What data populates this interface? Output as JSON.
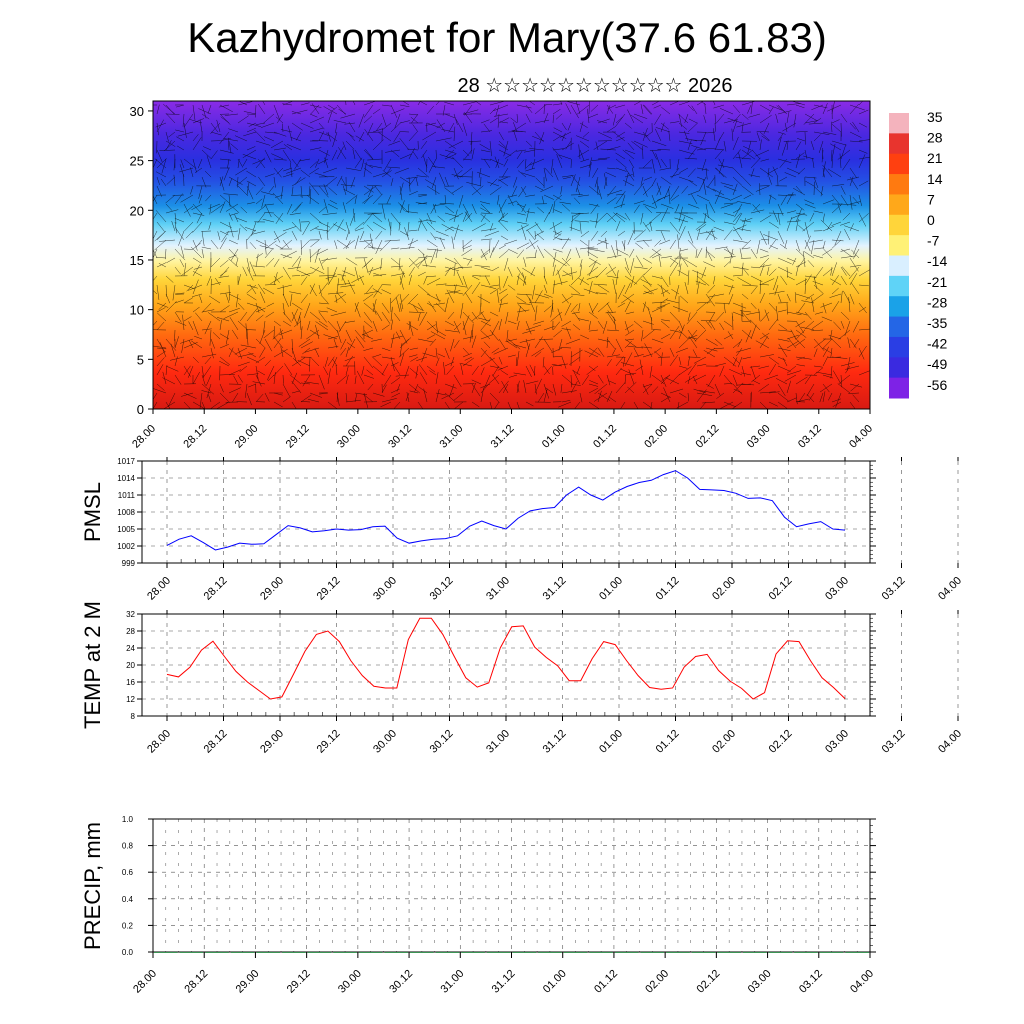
{
  "title": "Kazhydromet for Mary(37.6 61.83)",
  "subtitle": "28 ☆☆☆☆☆☆☆☆☆☆☆ 2026",
  "chart_data": [
    {
      "type": "heatmap",
      "name": "temperature-cross-section",
      "x_tick_labels": [
        "28.00",
        "28.12",
        "29.00",
        "29.12",
        "30.00",
        "30.12",
        "31.00",
        "31.12",
        "01.00",
        "01.12",
        "02.00",
        "02.12",
        "03.00",
        "03.12",
        "04.00"
      ],
      "y_ticks": [
        0,
        5,
        10,
        15,
        20,
        25,
        30
      ],
      "ylim": [
        0,
        31
      ],
      "colorbar": {
        "labels": [
          "35",
          "28",
          "21",
          "14",
          "7",
          "0",
          "-7",
          "-14",
          "-21",
          "-28",
          "-35",
          "-42",
          "-49",
          "-56"
        ],
        "colors": [
          "#f4b3bd",
          "#e8342e",
          "#ff4010",
          "#ff7a10",
          "#ffa81a",
          "#ffd53a",
          "#fff176",
          "#d9efff",
          "#5fd3f7",
          "#1aa2e8",
          "#2466e6",
          "#2a3ee4",
          "#3a2ae0",
          "#7e22e6"
        ]
      },
      "overlay": "wind vectors"
    },
    {
      "type": "line",
      "name": "pmsl",
      "ylabel": "PMSL",
      "ylim": [
        999,
        1017
      ],
      "y_ticks": [
        999,
        1002,
        1005,
        1008,
        1011,
        1014,
        1017
      ],
      "x_tick_labels": [
        "28.00",
        "28.12",
        "29.00",
        "29.12",
        "30.00",
        "30.12",
        "31.00",
        "31.12",
        "01.00",
        "01.12",
        "02.00",
        "02.12",
        "03.00",
        "03.12",
        "04.00"
      ],
      "x_range_steps": 48,
      "color": "#0000ff",
      "values": [
        1002.1,
        1003.2,
        1003.8,
        1002.6,
        1001.3,
        1001.8,
        1002.5,
        1002.3,
        1002.4,
        1004.0,
        1005.6,
        1005.2,
        1004.5,
        1004.7,
        1005.0,
        1004.8,
        1004.9,
        1005.4,
        1005.5,
        1003.4,
        1002.5,
        1002.9,
        1003.2,
        1003.3,
        1003.8,
        1005.5,
        1006.4,
        1005.6,
        1005.0,
        1006.9,
        1008.2,
        1008.6,
        1008.8,
        1011.0,
        1012.4,
        1011.0,
        1010.1,
        1011.5,
        1012.5,
        1013.2,
        1013.6,
        1014.6,
        1015.3,
        1014.0,
        1012.0,
        1011.9,
        1011.8,
        1011.3,
        1010.4,
        1010.5,
        1010.0,
        1007.1,
        1005.4,
        1005.9,
        1006.3,
        1005.0,
        1004.8
      ]
    },
    {
      "type": "line",
      "name": "temp-2m",
      "ylabel": "TEMP at 2 M",
      "ylim": [
        8,
        32
      ],
      "y_ticks": [
        8,
        12,
        16,
        20,
        24,
        28,
        32
      ],
      "x_tick_labels": [
        "28.00",
        "28.12",
        "29.00",
        "29.12",
        "30.00",
        "30.12",
        "31.00",
        "31.12",
        "01.00",
        "01.12",
        "02.00",
        "02.12",
        "03.00",
        "03.12",
        "04.00"
      ],
      "x_range_steps": 48,
      "color": "#ff0000",
      "values": [
        17.8,
        17.2,
        19.5,
        23.5,
        25.6,
        22.0,
        18.5,
        16.0,
        14.0,
        12.0,
        12.5,
        17.8,
        23.2,
        27.2,
        28.0,
        25.5,
        21.0,
        17.5,
        15.0,
        14.6,
        14.6,
        26.0,
        31.0,
        31.0,
        27.2,
        22.0,
        17.0,
        14.8,
        15.8,
        24.0,
        29.0,
        29.2,
        24.2,
        21.8,
        19.8,
        16.3,
        16.3,
        21.5,
        25.5,
        24.8,
        21.0,
        17.5,
        14.7,
        14.3,
        14.6,
        19.5,
        22.0,
        22.5,
        18.7,
        16.2,
        14.5,
        12.0,
        13.5,
        22.6,
        25.7,
        25.5,
        21.0,
        17.0,
        14.7,
        12.1
      ]
    },
    {
      "type": "bar",
      "name": "precip",
      "ylabel": "PRECIP, mm",
      "ylim": [
        0.0,
        1.0
      ],
      "y_ticks": [
        "0.0",
        "0.2",
        "0.4",
        "0.6",
        "0.8",
        "1.0"
      ],
      "x_tick_labels": [
        "28.00",
        "28.12",
        "29.00",
        "29.12",
        "30.00",
        "30.12",
        "31.00",
        "31.12",
        "01.00",
        "01.12",
        "02.00",
        "02.12",
        "03.00",
        "03.12",
        "04.00"
      ],
      "values": [
        0,
        0,
        0,
        0,
        0,
        0,
        0,
        0,
        0,
        0,
        0,
        0,
        0,
        0,
        0,
        0,
        0,
        0,
        0,
        0,
        0,
        0,
        0,
        0,
        0,
        0,
        0,
        0
      ]
    }
  ]
}
